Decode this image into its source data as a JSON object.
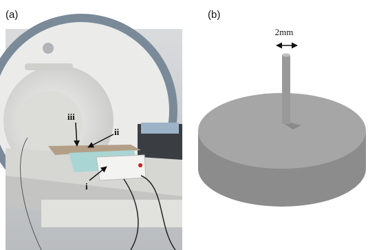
{
  "panels": [
    {
      "label": "(a)",
      "annotations": [
        "iii",
        "ii",
        "i"
      ]
    },
    {
      "label": "(b)",
      "dimension": "2mm"
    }
  ]
}
